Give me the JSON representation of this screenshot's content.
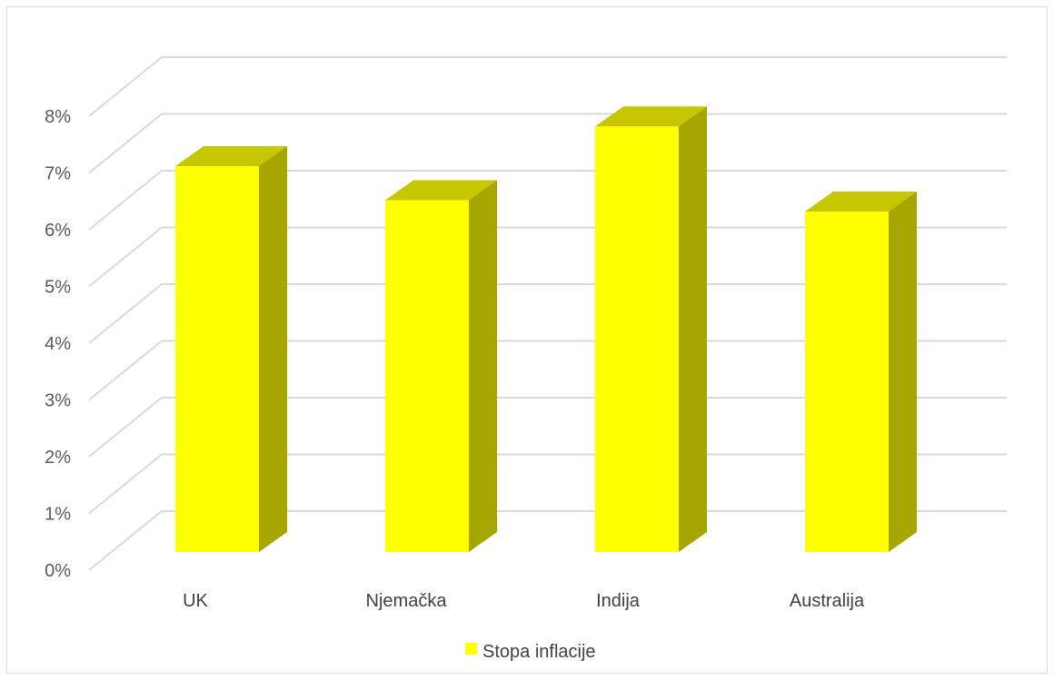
{
  "chart_data": {
    "type": "bar",
    "style": "3d-column",
    "categories": [
      "UK",
      "Njemačka",
      "Indija",
      "Australija"
    ],
    "series": [
      {
        "name": "Stopa inflacije",
        "values": [
          0.068,
          0.062,
          0.075,
          0.06
        ]
      }
    ],
    "ylim": [
      0,
      0.08
    ],
    "yticks": [
      "0%",
      "1%",
      "2%",
      "3%",
      "4%",
      "5%",
      "6%",
      "7%",
      "8%"
    ],
    "grid": true,
    "legend": "bottom",
    "colors": {
      "front": "#FFFF00",
      "top": "#C7C700",
      "side": "#A6A600",
      "grid": "#D9D9D9"
    }
  }
}
